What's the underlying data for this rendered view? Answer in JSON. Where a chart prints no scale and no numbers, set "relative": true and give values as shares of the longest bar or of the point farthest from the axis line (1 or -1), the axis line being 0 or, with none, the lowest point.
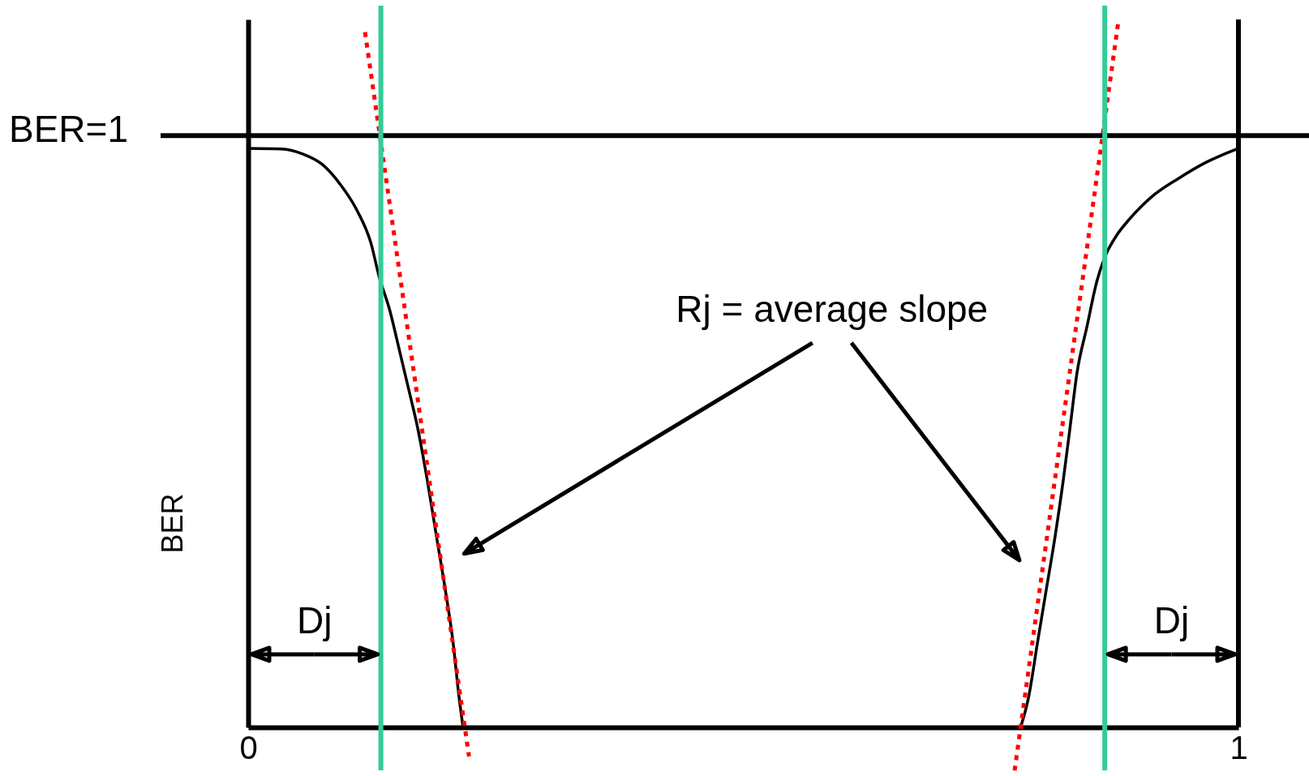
{
  "chart_data": {
    "type": "line",
    "relative": true,
    "ylabel": "BER",
    "xlim": [
      0,
      1
    ],
    "xticks": [
      0,
      1
    ],
    "tick_labels": "x",
    "series": [
      {
        "color": "#000000",
        "line_style": "solid",
        "x": [
          0,
          0.034,
          0.055,
          0.075,
          0.093,
          0.11,
          0.124,
          0.132,
          0.143,
          0.153,
          0.162,
          0.171,
          0.181,
          0.19,
          0.199,
          0.207,
          0.213,
          0.217
        ],
        "values": [
          0.818,
          0.817,
          0.81,
          0.795,
          0.767,
          0.73,
          0.684,
          0.638,
          0.589,
          0.531,
          0.478,
          0.424,
          0.348,
          0.271,
          0.195,
          0.119,
          0.042,
          0
        ]
      },
      {
        "color": "#000000",
        "line_style": "solid",
        "x": [
          0.78,
          0.788,
          0.797,
          0.806,
          0.815,
          0.823,
          0.83,
          0.837,
          0.847,
          0.857,
          0.865,
          0.877,
          0.89,
          0.912,
          0.939,
          0.967,
          1
        ],
        "values": [
          0,
          0.042,
          0.119,
          0.195,
          0.271,
          0.348,
          0.424,
          0.501,
          0.566,
          0.63,
          0.664,
          0.695,
          0.718,
          0.749,
          0.775,
          0.798,
          0.818
        ]
      },
      {
        "color": "#ff0000",
        "line_style": "dotted",
        "x": [
          0.118,
          0.223
        ],
        "values": [
          0.982,
          -0.041
        ]
      },
      {
        "color": "#ff0000",
        "line_style": "dotted",
        "x": [
          0.774,
          0.879
        ],
        "values": [
          -0.061,
          1
        ]
      }
    ],
    "ref_lines": [
      {
        "axis": "y",
        "value": 0.836,
        "label": "BER=1",
        "color": "#000000"
      },
      {
        "axis": "x",
        "value": 0.134,
        "color": "#33cc99"
      },
      {
        "axis": "x",
        "value": 0.865,
        "color": "#33cc99"
      }
    ],
    "annotations": [
      "Rj = average slope",
      "Dj",
      "Dj"
    ]
  }
}
